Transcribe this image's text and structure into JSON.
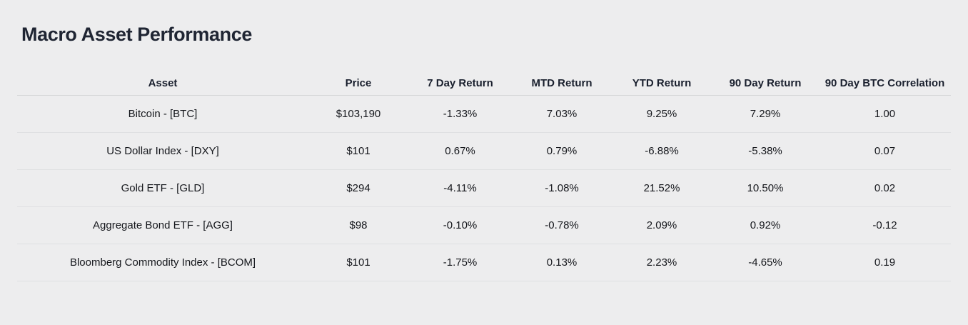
{
  "page": {
    "title": "Macro Asset Performance"
  },
  "colors": {
    "background": "#ededee",
    "title_text": "#1f2533",
    "header_text": "#1a202e",
    "body_text": "#15171c",
    "positive": "#178a2f",
    "negative": "#e8231f"
  },
  "chart_data": {
    "type": "table",
    "title": "Macro Asset Performance",
    "columns": [
      "Asset",
      "Price",
      "7 Day Return",
      "MTD Return",
      "YTD Return",
      "90 Day Return",
      "90 Day BTC Correlation"
    ],
    "rows": [
      {
        "asset": "Bitcoin - [BTC]",
        "price": "$103,190",
        "seven_day_return": "-1.33%",
        "mtd_return": "7.03%",
        "ytd_return": "9.25%",
        "ninety_day_return": "7.29%",
        "btc_correlation": "1.00"
      },
      {
        "asset": "US Dollar Index - [DXY]",
        "price": "$101",
        "seven_day_return": "0.67%",
        "mtd_return": "0.79%",
        "ytd_return": "-6.88%",
        "ninety_day_return": "-5.38%",
        "btc_correlation": "0.07"
      },
      {
        "asset": "Gold ETF - [GLD]",
        "price": "$294",
        "seven_day_return": "-4.11%",
        "mtd_return": "-1.08%",
        "ytd_return": "21.52%",
        "ninety_day_return": "10.50%",
        "btc_correlation": "0.02"
      },
      {
        "asset": "Aggregate Bond ETF - [AGG]",
        "price": "$98",
        "seven_day_return": "-0.10%",
        "mtd_return": "-0.78%",
        "ytd_return": "2.09%",
        "ninety_day_return": "0.92%",
        "btc_correlation": "-0.12"
      },
      {
        "asset": "Bloomberg Commodity Index - [BCOM]",
        "price": "$101",
        "seven_day_return": "-1.75%",
        "mtd_return": "0.13%",
        "ytd_return": "2.23%",
        "ninety_day_return": "-4.65%",
        "btc_correlation": "0.19"
      }
    ]
  }
}
